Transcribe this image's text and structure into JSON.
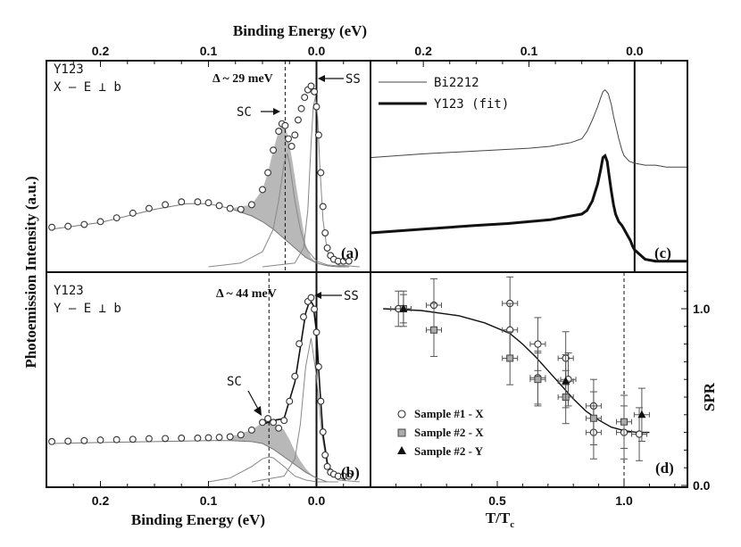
{
  "figure": {
    "top_axis_title": "Binding Energy (eV)",
    "bottom_left_axis_title": "Binding Energy (eV)",
    "bottom_right_axis_title": "T/T",
    "bottom_right_axis_title_sub": "c",
    "left_axis_title": "Photoemission Intensity (a.u.)",
    "right_axis_title": "SPR"
  },
  "chart_data": [
    {
      "id": "panel_a",
      "type": "line",
      "panel_label": "(a)",
      "sample_text": "Y123",
      "config_text": "X – E ⊥ b",
      "gap_text": "Δ ~ 29 meV",
      "sc_label": "SC",
      "ss_label": "SS",
      "xlim": [
        0.25,
        -0.05
      ],
      "ylim": [
        0,
        1.0
      ],
      "xlabel": "Binding Energy (eV)",
      "x_ticks": [
        "0.2",
        "0.1",
        "0.0"
      ],
      "dashed_line_x": 0.029,
      "series": [
        {
          "name": "data",
          "style": "open-circles",
          "x": [
            0.245,
            0.23,
            0.215,
            0.2,
            0.185,
            0.17,
            0.155,
            0.14,
            0.125,
            0.11,
            0.1,
            0.09,
            0.08,
            0.07,
            0.06,
            0.05,
            0.045,
            0.04,
            0.035,
            0.032,
            0.029,
            0.026,
            0.023,
            0.02,
            0.017,
            0.014,
            0.011,
            0.008,
            0.005,
            0.002,
            0.0,
            -0.002,
            -0.004,
            -0.006,
            -0.008,
            -0.01,
            -0.013,
            -0.016,
            -0.02,
            -0.025,
            -0.03
          ],
          "y": [
            0.21,
            0.215,
            0.225,
            0.24,
            0.26,
            0.285,
            0.31,
            0.33,
            0.345,
            0.345,
            0.34,
            0.325,
            0.31,
            0.305,
            0.33,
            0.41,
            0.5,
            0.62,
            0.72,
            0.76,
            0.75,
            0.68,
            0.64,
            0.7,
            0.78,
            0.84,
            0.9,
            0.94,
            0.96,
            0.93,
            0.85,
            0.7,
            0.5,
            0.32,
            0.18,
            0.1,
            0.06,
            0.04,
            0.03,
            0.03,
            0.03
          ]
        },
        {
          "name": "background-fit",
          "style": "thin-line",
          "x": [
            0.245,
            0.2,
            0.15,
            0.12,
            0.1,
            0.08,
            0.06,
            0.05,
            0.04,
            0.03,
            0.02,
            0.01,
            0.0,
            -0.01,
            -0.02,
            -0.03
          ],
          "y": [
            0.2,
            0.235,
            0.305,
            0.335,
            0.335,
            0.31,
            0.27,
            0.24,
            0.2,
            0.15,
            0.1,
            0.05,
            0.02,
            0.005,
            0.0,
            0.0
          ]
        },
        {
          "name": "sc-peak-fit",
          "style": "thin-line",
          "x": [
            0.1,
            0.07,
            0.05,
            0.04,
            0.035,
            0.03,
            0.027,
            0.025,
            0.02,
            0.015,
            0.01,
            0.0,
            -0.01,
            -0.03
          ],
          "y": [
            0.0,
            0.02,
            0.08,
            0.2,
            0.35,
            0.55,
            0.6,
            0.55,
            0.35,
            0.2,
            0.1,
            0.03,
            0.01,
            0.0
          ]
        },
        {
          "name": "ss-peak-fit",
          "style": "thin-line",
          "x": [
            0.05,
            0.02,
            0.012,
            0.008,
            0.005,
            0.003,
            0.001,
            -0.001,
            -0.003,
            -0.006,
            -0.01,
            -0.02,
            -0.04
          ],
          "y": [
            0.0,
            0.02,
            0.1,
            0.3,
            0.65,
            0.85,
            0.9,
            0.8,
            0.55,
            0.25,
            0.08,
            0.01,
            0.0
          ]
        }
      ]
    },
    {
      "id": "panel_b",
      "type": "line",
      "panel_label": "(b)",
      "sample_text": "Y123",
      "config_text": "Y – E ⊥ b",
      "gap_text": "Δ ~ 44 meV",
      "sc_label": "SC",
      "ss_label": "SS",
      "xlim": [
        0.25,
        -0.05
      ],
      "ylim": [
        0,
        1.0
      ],
      "xlabel": "Binding Energy (eV)",
      "x_ticks": [
        "0.2",
        "0.1",
        "0.0"
      ],
      "dashed_line_x": 0.044,
      "series": [
        {
          "name": "data",
          "style": "open-circles",
          "x": [
            0.245,
            0.23,
            0.215,
            0.2,
            0.185,
            0.17,
            0.155,
            0.14,
            0.125,
            0.11,
            0.1,
            0.09,
            0.08,
            0.07,
            0.06,
            0.05,
            0.045,
            0.04,
            0.035,
            0.03,
            0.025,
            0.02,
            0.016,
            0.012,
            0.008,
            0.005,
            0.002,
            0.0,
            -0.002,
            -0.004,
            -0.006,
            -0.008,
            -0.01,
            -0.013,
            -0.016,
            -0.02,
            -0.025,
            -0.03
          ],
          "y": [
            0.21,
            0.212,
            0.215,
            0.218,
            0.22,
            0.222,
            0.225,
            0.226,
            0.228,
            0.228,
            0.23,
            0.232,
            0.235,
            0.245,
            0.27,
            0.31,
            0.33,
            0.31,
            0.28,
            0.32,
            0.42,
            0.55,
            0.72,
            0.86,
            0.94,
            0.96,
            0.9,
            0.78,
            0.6,
            0.42,
            0.26,
            0.14,
            0.08,
            0.05,
            0.04,
            0.03,
            0.03,
            0.03
          ]
        },
        {
          "name": "fit",
          "style": "thin-line",
          "x": [
            0.05,
            0.04,
            0.03,
            0.02,
            0.015,
            0.01,
            0.006,
            0.003,
            0.0,
            -0.003,
            -0.006,
            -0.01,
            -0.015,
            -0.02
          ],
          "y": [
            0.3,
            0.32,
            0.33,
            0.52,
            0.7,
            0.88,
            0.95,
            0.92,
            0.78,
            0.5,
            0.25,
            0.1,
            0.04,
            0.03
          ]
        },
        {
          "name": "background-fit",
          "style": "thin-line",
          "x": [
            0.245,
            0.2,
            0.15,
            0.1,
            0.08,
            0.06,
            0.05,
            0.04,
            0.03,
            0.02,
            0.01,
            0.0,
            -0.01,
            -0.02
          ],
          "y": [
            0.2,
            0.205,
            0.21,
            0.215,
            0.215,
            0.21,
            0.2,
            0.17,
            0.13,
            0.09,
            0.05,
            0.02,
            0.0,
            0.0
          ]
        },
        {
          "name": "sc-peak-fit",
          "style": "thin-line",
          "x": [
            0.1,
            0.08,
            0.06,
            0.05,
            0.044,
            0.04,
            0.03,
            0.02,
            0.01,
            0.0,
            -0.02
          ],
          "y": [
            0.0,
            0.02,
            0.08,
            0.12,
            0.13,
            0.125,
            0.08,
            0.03,
            0.01,
            0.0,
            0.0
          ]
        },
        {
          "name": "ss-peak-fit",
          "style": "thin-line",
          "x": [
            0.06,
            0.03,
            0.02,
            0.015,
            0.01,
            0.005,
            0.0,
            -0.005,
            -0.01,
            -0.02,
            -0.04
          ],
          "y": [
            0.0,
            0.03,
            0.12,
            0.3,
            0.6,
            0.75,
            0.55,
            0.25,
            0.08,
            0.01,
            0.0
          ]
        }
      ]
    },
    {
      "id": "panel_c",
      "type": "line",
      "panel_label": "(c)",
      "xlim": [
        0.25,
        -0.05
      ],
      "ylim": [
        0,
        1.0
      ],
      "x_ticks": [
        "0.2",
        "0.1",
        "0.0"
      ],
      "legend": [
        {
          "name": "Bi2212",
          "style": "thin-line"
        },
        {
          "name": "Y123 (fit)",
          "style": "thick-line"
        }
      ],
      "series": [
        {
          "name": "Bi2212",
          "style": "thin-line",
          "x": [
            0.25,
            0.2,
            0.15,
            0.1,
            0.08,
            0.06,
            0.05,
            0.045,
            0.04,
            0.035,
            0.032,
            0.03,
            0.028,
            0.025,
            0.022,
            0.02,
            0.017,
            0.015,
            0.012,
            0.01,
            0.005,
            0.0,
            -0.01,
            -0.02,
            -0.03,
            -0.04,
            -0.05
          ],
          "y": [
            0.58,
            0.6,
            0.615,
            0.63,
            0.64,
            0.66,
            0.68,
            0.72,
            0.78,
            0.85,
            0.9,
            0.93,
            0.94,
            0.92,
            0.86,
            0.8,
            0.73,
            0.68,
            0.62,
            0.59,
            0.56,
            0.55,
            0.54,
            0.54,
            0.53,
            0.53,
            0.53
          ]
        },
        {
          "name": "Y123 (fit)",
          "style": "thick-line",
          "x": [
            0.25,
            0.2,
            0.15,
            0.12,
            0.1,
            0.08,
            0.06,
            0.05,
            0.045,
            0.04,
            0.035,
            0.032,
            0.03,
            0.028,
            0.026,
            0.024,
            0.022,
            0.02,
            0.018,
            0.015,
            0.012,
            0.01,
            0.007,
            0.004,
            0.002,
            0.0,
            -0.01,
            -0.02,
            -0.03,
            -0.04,
            -0.05
          ],
          "y": [
            0.18,
            0.2,
            0.22,
            0.23,
            0.24,
            0.25,
            0.27,
            0.28,
            0.3,
            0.35,
            0.44,
            0.52,
            0.58,
            0.59,
            0.56,
            0.48,
            0.4,
            0.33,
            0.28,
            0.24,
            0.22,
            0.2,
            0.17,
            0.14,
            0.11,
            0.09,
            0.04,
            0.03,
            0.03,
            0.03,
            0.03
          ]
        }
      ]
    },
    {
      "id": "panel_d",
      "type": "scatter",
      "panel_label": "(d)",
      "xlabel": "T/Tc",
      "ylabel": "SPR",
      "xlim": [
        0.0,
        1.25
      ],
      "ylim": [
        0.0,
        1.2
      ],
      "x_ticks": [
        "0.5",
        "1.0"
      ],
      "y_ticks": [
        "0.0",
        "1.0"
      ],
      "dashed_line_x": 1.0,
      "legend": [
        {
          "name": "Sample #1 - X",
          "marker": "open-circle"
        },
        {
          "name": "Sample #2 - X",
          "marker": "gray-square"
        },
        {
          "name": "Sample #2 - Y",
          "marker": "filled-triangle"
        }
      ],
      "series": [
        {
          "name": "Sample #1 - X",
          "marker": "open-circle",
          "x": [
            0.11,
            0.25,
            0.55,
            0.55,
            0.66,
            0.66,
            0.77,
            0.78,
            0.88,
            0.88,
            1.0,
            1.06
          ],
          "y": [
            1.0,
            1.02,
            1.03,
            0.88,
            0.8,
            0.61,
            0.72,
            0.6,
            0.45,
            0.3,
            0.3,
            0.29
          ],
          "x_err": [
            0.03,
            0.03,
            0.03,
            0.03,
            0.03,
            0.03,
            0.03,
            0.03,
            0.03,
            0.03,
            0.03,
            0.03
          ],
          "y_err": [
            0.1,
            0.15,
            0.15,
            0.15,
            0.15,
            0.15,
            0.15,
            0.15,
            0.15,
            0.15,
            0.15,
            0.15
          ]
        },
        {
          "name": "Sample #2 - X",
          "marker": "gray-square",
          "x": [
            0.13,
            0.25,
            0.55,
            0.66,
            0.77,
            0.88,
            1.0
          ],
          "y": [
            1.0,
            0.88,
            0.72,
            0.6,
            0.5,
            0.38,
            0.36
          ],
          "x_err": [
            0.03,
            0.03,
            0.03,
            0.03,
            0.03,
            0.03,
            0.03
          ],
          "y_err": [
            0.1,
            0.15,
            0.15,
            0.15,
            0.15,
            0.15,
            0.15
          ]
        },
        {
          "name": "Sample #2 - Y",
          "marker": "filled-triangle",
          "x": [
            0.13,
            0.77,
            1.07
          ],
          "y": [
            1.0,
            0.59,
            0.4
          ],
          "x_err": [
            0.03,
            0.03,
            0.03
          ],
          "y_err": [
            0.08,
            0.15,
            0.15
          ]
        },
        {
          "name": "fit",
          "style": "thin-line",
          "x": [
            0.05,
            0.2,
            0.35,
            0.45,
            0.55,
            0.6,
            0.65,
            0.7,
            0.75,
            0.8,
            0.85,
            0.9,
            0.95,
            1.0,
            1.05,
            1.1
          ],
          "y": [
            1.0,
            0.99,
            0.96,
            0.92,
            0.86,
            0.8,
            0.73,
            0.65,
            0.57,
            0.49,
            0.42,
            0.37,
            0.33,
            0.31,
            0.3,
            0.3
          ]
        }
      ]
    }
  ]
}
